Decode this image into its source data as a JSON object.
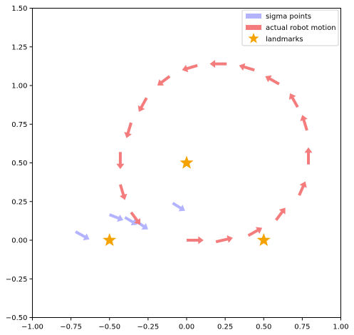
{
  "chart_data": {
    "type": "quiver",
    "title": "",
    "xlabel": "",
    "ylabel": "",
    "xlim": [
      -1.0,
      1.0
    ],
    "ylim": [
      -0.5,
      1.5
    ],
    "x_ticks": [
      "−1.00",
      "−0.75",
      "−0.50",
      "−0.25",
      "0.00",
      "0.25",
      "0.50",
      "0.75",
      "1.00"
    ],
    "y_ticks": [
      "−0.50",
      "−0.25",
      "0.00",
      "0.25",
      "0.50",
      "0.75",
      "1.00",
      "1.25",
      "1.50"
    ],
    "x_tick_values": [
      -1.0,
      -0.75,
      -0.5,
      -0.25,
      0.0,
      0.25,
      0.5,
      0.75,
      1.0
    ],
    "y_tick_values": [
      -0.5,
      -0.25,
      0.0,
      0.25,
      0.5,
      0.75,
      1.0,
      1.25,
      1.5
    ],
    "grid": false,
    "legend_position": "top-right",
    "series": [
      {
        "name": "sigma points",
        "color": "#b3b3ff",
        "kind": "arrows",
        "arrows": [
          {
            "x0": -0.72,
            "y0": 0.055,
            "x1": -0.63,
            "y1": 0.005
          },
          {
            "x0": -0.5,
            "y0": 0.165,
            "x1": -0.41,
            "y1": 0.13
          },
          {
            "x0": -0.4,
            "y0": 0.148,
            "x1": -0.32,
            "y1": 0.1
          },
          {
            "x0": -0.33,
            "y0": 0.125,
            "x1": -0.25,
            "y1": 0.07
          },
          {
            "x0": -0.09,
            "y0": 0.24,
            "x1": -0.01,
            "y1": 0.19
          }
        ]
      },
      {
        "name": "actual robot motion",
        "color": "#f47c7c",
        "kind": "arrows",
        "arrows": [
          {
            "x0": 0.0,
            "y0": 0.0,
            "x1": 0.11,
            "y1": 0.0
          },
          {
            "x0": 0.19,
            "y0": -0.01,
            "x1": 0.3,
            "y1": 0.015
          },
          {
            "x0": 0.4,
            "y0": 0.03,
            "x1": 0.49,
            "y1": 0.08
          },
          {
            "x0": 0.58,
            "y0": 0.13,
            "x1": 0.64,
            "y1": 0.21
          },
          {
            "x0": 0.73,
            "y0": 0.29,
            "x1": 0.77,
            "y1": 0.38
          },
          {
            "x0": 0.79,
            "y0": 0.49,
            "x1": 0.79,
            "y1": 0.6
          },
          {
            "x0": 0.78,
            "y0": 0.71,
            "x1": 0.75,
            "y1": 0.81
          },
          {
            "x0": 0.72,
            "y0": 0.86,
            "x1": 0.67,
            "y1": 0.95
          },
          {
            "x0": 0.6,
            "y0": 1.01,
            "x1": 0.51,
            "y1": 1.06
          },
          {
            "x0": 0.44,
            "y0": 1.1,
            "x1": 0.34,
            "y1": 1.13
          },
          {
            "x0": 0.26,
            "y0": 1.14,
            "x1": 0.15,
            "y1": 1.14
          },
          {
            "x0": 0.07,
            "y0": 1.13,
            "x1": -0.03,
            "y1": 1.1
          },
          {
            "x0": -0.11,
            "y0": 1.06,
            "x1": -0.19,
            "y1": 1.0
          },
          {
            "x0": -0.26,
            "y0": 0.92,
            "x1": -0.31,
            "y1": 0.83
          },
          {
            "x0": -0.36,
            "y0": 0.76,
            "x1": -0.39,
            "y1": 0.66
          },
          {
            "x0": -0.43,
            "y0": 0.57,
            "x1": -0.43,
            "y1": 0.46
          },
          {
            "x0": -0.43,
            "y0": 0.36,
            "x1": -0.4,
            "y1": 0.26
          },
          {
            "x0": -0.36,
            "y0": 0.18,
            "x1": -0.3,
            "y1": 0.1
          }
        ]
      },
      {
        "name": "landmarks",
        "color": "#f5a300",
        "kind": "stars",
        "points": [
          {
            "x": 0.0,
            "y": 0.5
          },
          {
            "x": -0.5,
            "y": 0.0
          },
          {
            "x": 0.5,
            "y": 0.0
          }
        ]
      }
    ]
  }
}
